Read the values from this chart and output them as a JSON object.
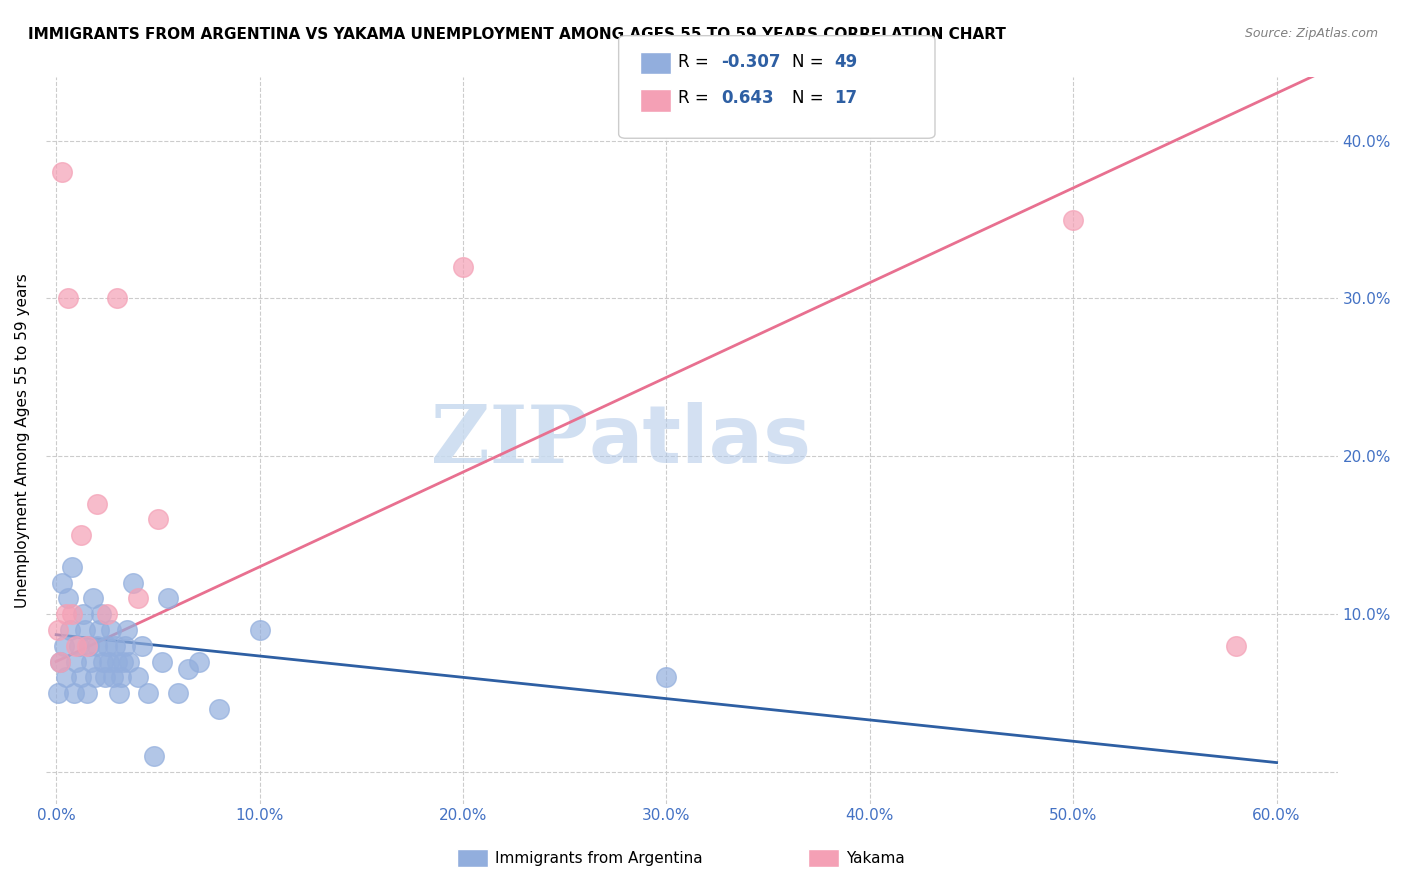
{
  "title": "IMMIGRANTS FROM ARGENTINA VS YAKAMA UNEMPLOYMENT AMONG AGES 55 TO 59 YEARS CORRELATION CHART",
  "source": "Source: ZipAtlas.com",
  "ylabel": "Unemployment Among Ages 55 to 59 years",
  "r_argentina": -0.307,
  "n_argentina": 49,
  "r_yakama": 0.643,
  "n_yakama": 17,
  "argentina_color": "#92AEDD",
  "yakama_color": "#F4A0B5",
  "argentina_line_color": "#2E5FA3",
  "yakama_line_color": "#E87090",
  "watermark_zip": "ZIP",
  "watermark_atlas": "atlas",
  "argentina_scatter_x": [
    0.001,
    0.002,
    0.003,
    0.004,
    0.005,
    0.006,
    0.007,
    0.008,
    0.009,
    0.01,
    0.011,
    0.012,
    0.013,
    0.014,
    0.015,
    0.016,
    0.017,
    0.018,
    0.019,
    0.02,
    0.021,
    0.022,
    0.023,
    0.024,
    0.025,
    0.026,
    0.027,
    0.028,
    0.029,
    0.03,
    0.031,
    0.032,
    0.033,
    0.034,
    0.035,
    0.036,
    0.038,
    0.04,
    0.042,
    0.045,
    0.048,
    0.052,
    0.055,
    0.06,
    0.065,
    0.07,
    0.08,
    0.1,
    0.3
  ],
  "argentina_scatter_y": [
    0.05,
    0.07,
    0.12,
    0.08,
    0.06,
    0.11,
    0.09,
    0.13,
    0.05,
    0.07,
    0.08,
    0.06,
    0.1,
    0.09,
    0.05,
    0.08,
    0.07,
    0.11,
    0.06,
    0.08,
    0.09,
    0.1,
    0.07,
    0.06,
    0.08,
    0.07,
    0.09,
    0.06,
    0.08,
    0.07,
    0.05,
    0.06,
    0.07,
    0.08,
    0.09,
    0.07,
    0.12,
    0.06,
    0.08,
    0.05,
    0.01,
    0.07,
    0.11,
    0.05,
    0.065,
    0.07,
    0.04,
    0.09,
    0.06
  ],
  "yakama_scatter_x": [
    0.001,
    0.002,
    0.003,
    0.005,
    0.006,
    0.008,
    0.01,
    0.012,
    0.015,
    0.02,
    0.025,
    0.03,
    0.04,
    0.05,
    0.2,
    0.5,
    0.58
  ],
  "yakama_scatter_y": [
    0.09,
    0.07,
    0.38,
    0.1,
    0.3,
    0.1,
    0.08,
    0.15,
    0.08,
    0.17,
    0.1,
    0.3,
    0.11,
    0.16,
    0.32,
    0.35,
    0.08
  ],
  "xlim": [
    -0.005,
    0.63
  ],
  "ylim": [
    -0.02,
    0.44
  ],
  "xticks": [
    0.0,
    0.1,
    0.2,
    0.3,
    0.4,
    0.5,
    0.6
  ],
  "yticks": [
    0.0,
    0.1,
    0.2,
    0.3,
    0.4
  ],
  "xtick_labels": [
    "0.0%",
    "10.0%",
    "20.0%",
    "30.0%",
    "40.0%",
    "50.0%",
    "60.0%"
  ],
  "left_ytick_labels": [
    "",
    "",
    "",
    "",
    ""
  ],
  "right_ytick_labels": [
    "",
    "10.0%",
    "20.0%",
    "30.0%",
    "40.0%"
  ],
  "background_color": "#FFFFFF",
  "grid_color": "#CCCCCC",
  "tick_color_x": "#4472C4",
  "tick_color_y": "#4472C4",
  "arg_line_x": [
    0.0,
    0.6
  ],
  "arg_line_slope": -0.135,
  "arg_line_intercept": 0.087,
  "yak_line_x": [
    0.0,
    0.62
  ],
  "yak_line_slope": 0.6,
  "yak_line_intercept": 0.07
}
